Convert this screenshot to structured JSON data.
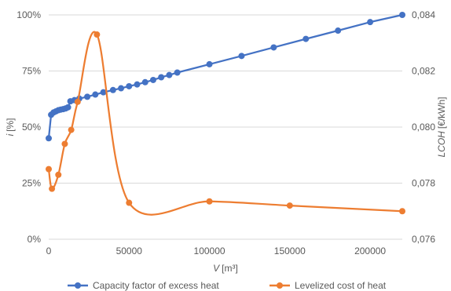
{
  "chart_data": {
    "type": "line",
    "xlabel_var": "V",
    "xlabel_unit": "[m³]",
    "ylabel_left_var": "i",
    "ylabel_left_unit": "[%]",
    "ylabel_right_var": "LCOH",
    "ylabel_right_unit": "[€/kWh]",
    "xlim": [
      0,
      220000
    ],
    "ylim_left": [
      0,
      100
    ],
    "ylim_right": [
      0.076,
      0.084
    ],
    "x_ticks": [
      0,
      50000,
      100000,
      150000,
      200000
    ],
    "x_tick_labels": [
      "0",
      "50000",
      "100000",
      "150000",
      "200000"
    ],
    "y_left_ticks": [
      0,
      25,
      50,
      75,
      100
    ],
    "y_left_tick_labels": [
      "0%",
      "25%",
      "50%",
      "75%",
      "100%"
    ],
    "y_right_ticks": [
      0.076,
      0.078,
      0.08,
      0.082,
      0.084
    ],
    "y_right_tick_labels": [
      "0,076",
      "0,078",
      "0,080",
      "0,082",
      "0,084"
    ],
    "grid": "horizontal",
    "legend_position": "bottom",
    "series": [
      {
        "name": "Capacity factor of excess heat",
        "axis": "left",
        "color": "#4472C4",
        "smooth": false,
        "x": [
          0,
          1500,
          3000,
          4500,
          6000,
          7500,
          9000,
          10500,
          12000,
          13500,
          16000,
          19000,
          24000,
          29000,
          34000,
          40000,
          45000,
          50000,
          55000,
          60000,
          65000,
          70000,
          75000,
          80000,
          100000,
          120000,
          140000,
          160000,
          180000,
          200000,
          220000
        ],
        "y": [
          45,
          55.5,
          56.5,
          57,
          57.5,
          57.8,
          58,
          58.3,
          58.8,
          61.5,
          62,
          62.7,
          63.5,
          64.5,
          65.5,
          66.5,
          67.3,
          68.2,
          69,
          70,
          71,
          72.2,
          73.2,
          74.3,
          78,
          81.7,
          85.5,
          89.3,
          93,
          96.8,
          100
        ]
      },
      {
        "name": "Levelized cost of heat",
        "axis": "right",
        "color": "#ED7D31",
        "smooth": true,
        "x": [
          0,
          2000,
          6000,
          10000,
          14000,
          18000,
          30000,
          50000,
          100000,
          150000,
          220000
        ],
        "y": [
          0.0785,
          0.0778,
          0.0783,
          0.0794,
          0.0799,
          0.0809,
          0.0833,
          0.0773,
          0.07735,
          0.0772,
          0.077
        ]
      }
    ]
  }
}
